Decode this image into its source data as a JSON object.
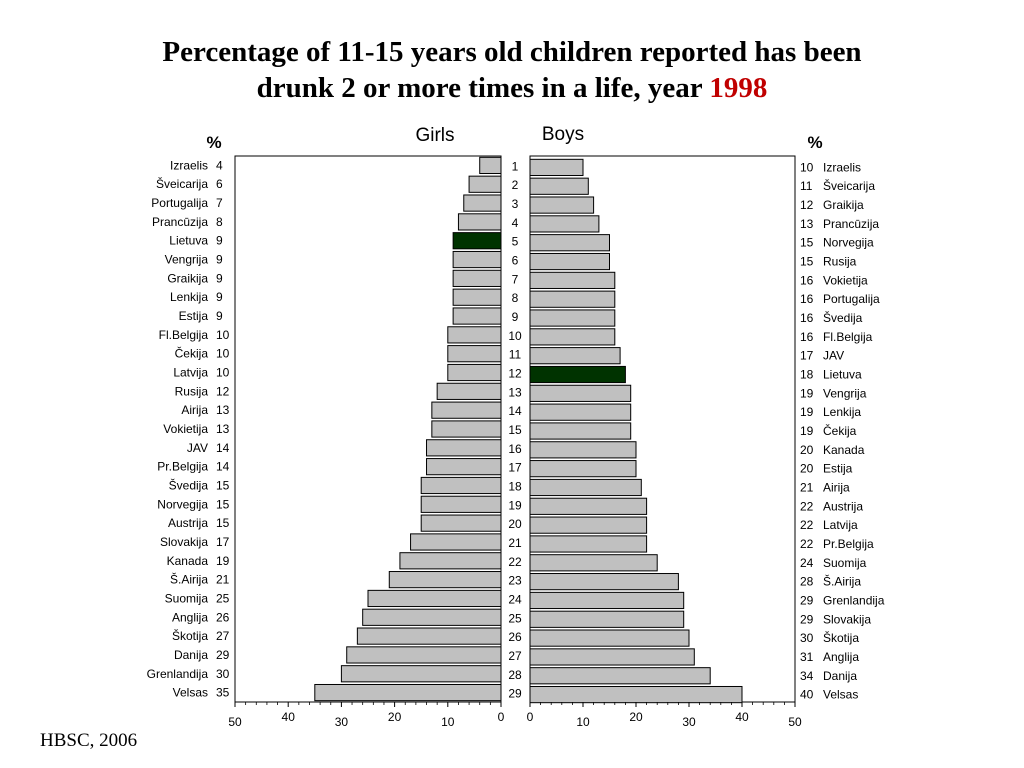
{
  "title": {
    "line1": "Percentage of 11-15 years old children reported has been",
    "line2_prefix": "drunk 2 or more times in a life, year",
    "year": "1998"
  },
  "source": "HBSC, 2006",
  "colors": {
    "bar": "#c0c0c0",
    "highlight": "#003300",
    "title_year": "#c00000"
  },
  "chart_data": {
    "type": "bar",
    "orientation": "horizontal-butterfly",
    "percent_symbol": "%",
    "xlim": [
      0,
      50
    ],
    "ticks": [
      "0",
      "10",
      "20",
      "30",
      "40",
      "50"
    ],
    "rank_labels": [
      "1",
      "2",
      "3",
      "4",
      "5",
      "6",
      "7",
      "8",
      "9",
      "10",
      "11",
      "12",
      "13",
      "14",
      "15",
      "16",
      "17",
      "18",
      "19",
      "20",
      "21",
      "22",
      "23",
      "24",
      "25",
      "26",
      "27",
      "28",
      "29"
    ],
    "girls": {
      "name": "Girls",
      "highlight": "Lietuva",
      "categories": [
        "Izraelis",
        "Šveicarija",
        "Portugalija",
        "Prancūzija",
        "Lietuva",
        "Vengrija",
        "Graikija",
        "Lenkija",
        "Estija",
        "Fl.Belgija",
        "Čekija",
        "Latvija",
        "Rusija",
        "Airija",
        "Vokietija",
        "JAV",
        "Pr.Belgija",
        "Švedija",
        "Norvegija",
        "Austrija",
        "Slovakija",
        "Kanada",
        "Š.Airija",
        "Suomija",
        "Anglija",
        "Škotija",
        "Danija",
        "Grenlandija",
        "Velsas"
      ],
      "values": [
        4,
        6,
        7,
        8,
        9,
        9,
        9,
        9,
        9,
        10,
        10,
        10,
        12,
        13,
        13,
        14,
        14,
        15,
        15,
        15,
        17,
        19,
        21,
        25,
        26,
        27,
        29,
        30,
        35
      ]
    },
    "boys": {
      "name": "Boys",
      "highlight": "Lietuva",
      "categories": [
        "Izraelis",
        "Šveicarija",
        "Graikija",
        "Prancūzija",
        "Norvegija",
        "Rusija",
        "Vokietija",
        "Portugalija",
        "Švedija",
        "Fl.Belgija",
        "JAV",
        "Lietuva",
        "Vengrija",
        "Lenkija",
        "Čekija",
        "Kanada",
        "Estija",
        "Airija",
        "Austrija",
        "Latvija",
        "Pr.Belgija",
        "Suomija",
        "Š.Airija",
        "Grenlandija",
        "Slovakija",
        "Škotija",
        "Anglija",
        "Danija",
        "Velsas"
      ],
      "values": [
        10,
        11,
        12,
        13,
        15,
        15,
        16,
        16,
        16,
        16,
        17,
        18,
        19,
        19,
        19,
        20,
        20,
        21,
        22,
        22,
        22,
        24,
        28,
        29,
        29,
        30,
        31,
        34,
        40
      ]
    }
  }
}
